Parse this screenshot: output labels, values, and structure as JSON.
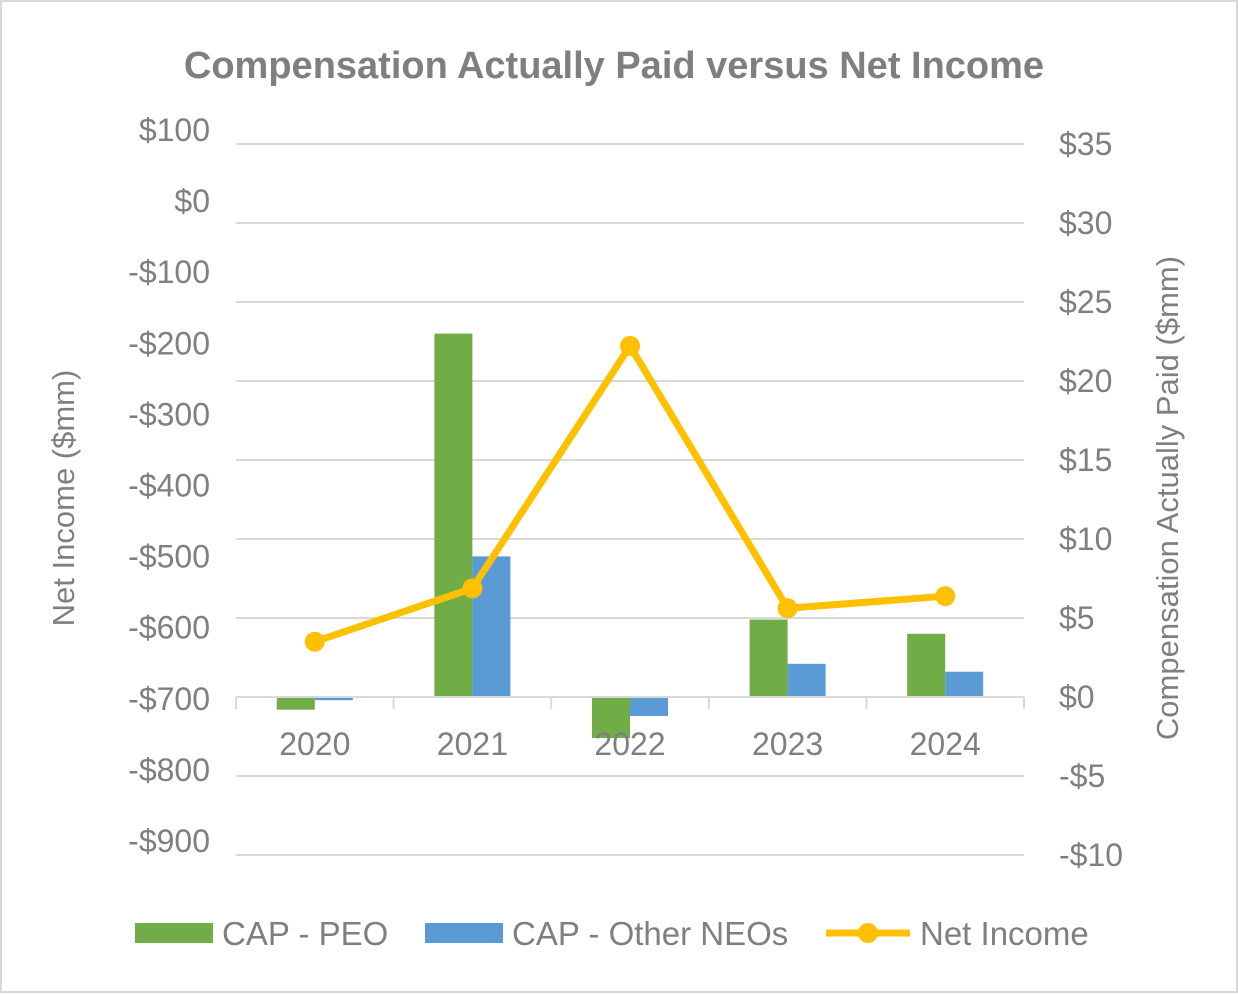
{
  "chart_data": {
    "type": "bar",
    "title": "Compensation Actually Paid versus Net Income",
    "categories": [
      "2020",
      "2021",
      "2022",
      "2023",
      "2024"
    ],
    "left_axis": {
      "label": "Net Income ($mm)",
      "ylim": [
        -900,
        100
      ],
      "ticks": [
        100,
        0,
        -100,
        -200,
        -300,
        -400,
        -500,
        -600,
        -700,
        -800,
        -900
      ],
      "tick_labels": [
        "$100",
        "$0",
        "-$100",
        "-$200",
        "-$300",
        "-$400",
        "-$500",
        "-$600",
        "-$700",
        "-$800",
        "-$900"
      ]
    },
    "right_axis": {
      "label": "Compensation Actually Paid ($mm)",
      "ylim": [
        -10,
        35
      ],
      "ticks": [
        35,
        30,
        25,
        20,
        15,
        10,
        5,
        0,
        -5,
        -10
      ],
      "tick_labels": [
        "$35",
        "$30",
        "$25",
        "$20",
        "$15",
        "$10",
        "$5",
        "$0",
        "-$5",
        "-$10"
      ]
    },
    "series": [
      {
        "name": "CAP - PEO",
        "type": "bar",
        "axis": "right",
        "color": "#70ad47",
        "values": [
          -0.8,
          23.0,
          -2.6,
          4.9,
          4.0
        ]
      },
      {
        "name": "CAP - Other NEOs",
        "type": "bar",
        "axis": "right",
        "color": "#5b9bd5",
        "values": [
          -0.2,
          8.9,
          -1.2,
          2.1,
          1.6
        ]
      },
      {
        "name": "Net Income",
        "type": "line",
        "axis": "left",
        "color": "#ffc000",
        "values": [
          -600,
          -525,
          -184,
          -553,
          -536
        ]
      }
    ],
    "legend_position": "bottom",
    "grid": true
  }
}
